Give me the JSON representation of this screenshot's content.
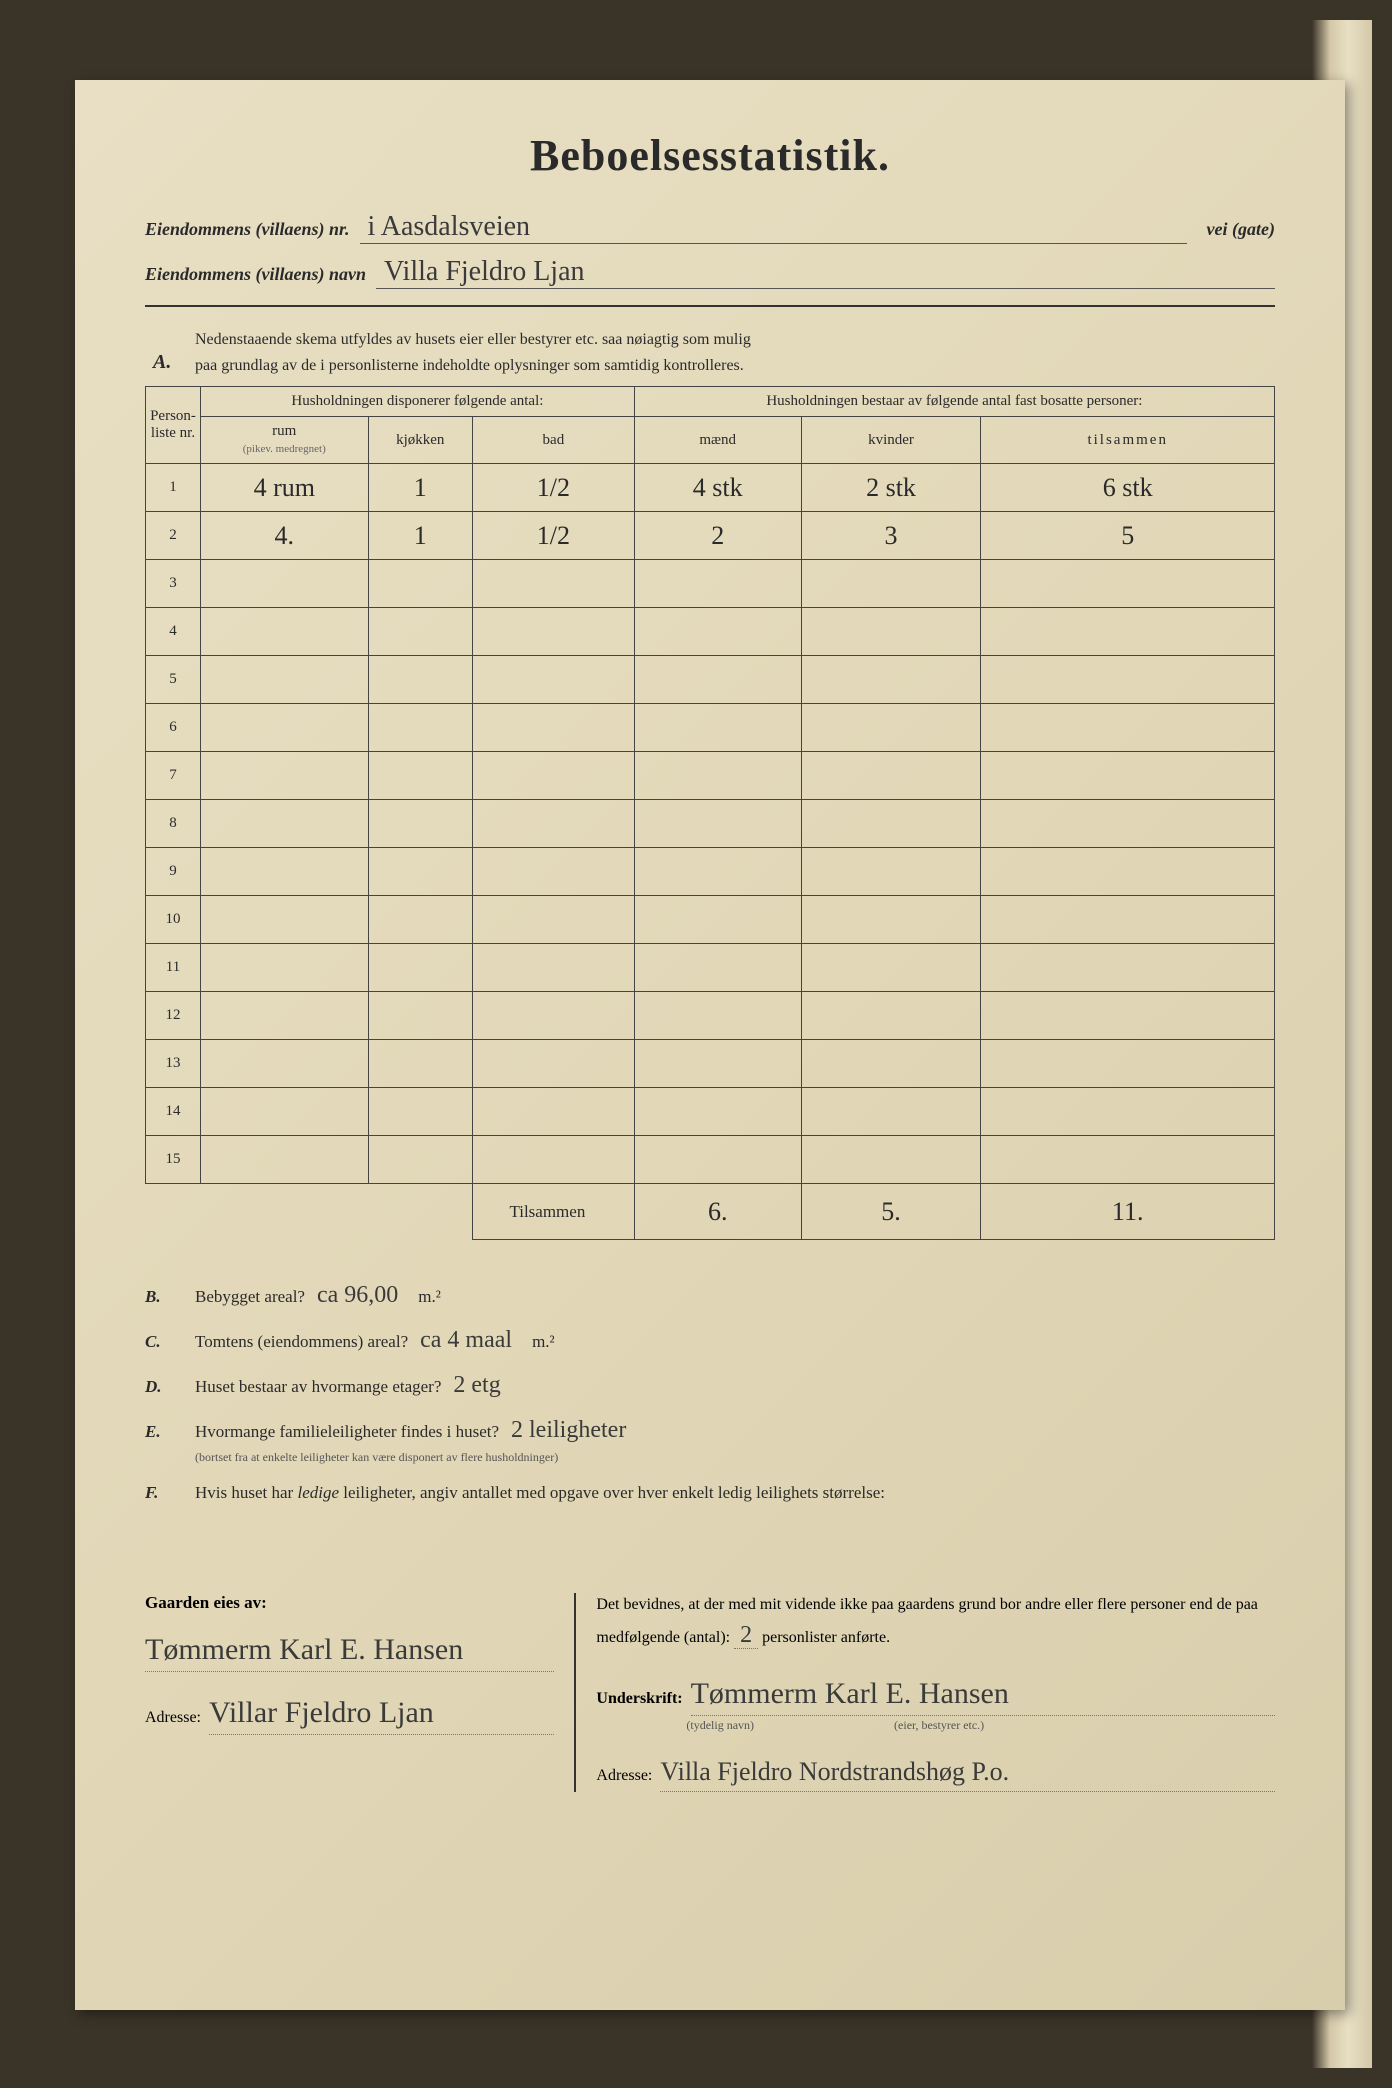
{
  "title": "Beboelsesstatistik.",
  "header": {
    "nr_label": "Eiendommens (villaens) nr.",
    "nr_value": "i Aasdalsveien",
    "vei_gate": "vei (gate)",
    "navn_label": "Eiendommens (villaens) navn",
    "navn_value": "Villa Fjeldro Ljan"
  },
  "section_a": {
    "letter": "A.",
    "text1": "Nedenstaaende skema utfyldes av husets eier eller bestyrer etc. saa nøiagtig som mulig",
    "text2": "paa grundlag av de i personlisterne indeholdte oplysninger som samtidig kontrolleres."
  },
  "table": {
    "col_personliste": "Person-liste nr.",
    "col_disponerer": "Husholdningen disponerer følgende antal:",
    "col_bestaar": "Husholdningen bestaar av følgende antal fast bosatte personer:",
    "col_rum": "rum",
    "col_rum_sub": "(pikev. medregnet)",
    "col_kjokken": "kjøkken",
    "col_bad": "bad",
    "col_maend": "mænd",
    "col_kvinder": "kvinder",
    "col_tilsammen": "tilsammen",
    "rows": [
      {
        "n": "1",
        "rum": "4 rum",
        "kjokken": "1",
        "bad": "1/2",
        "maend": "4 stk",
        "kvinder": "2 stk",
        "tils": "6 stk"
      },
      {
        "n": "2",
        "rum": "4.",
        "kjokken": "1",
        "bad": "1/2",
        "maend": "2",
        "kvinder": "3",
        "tils": "5"
      },
      {
        "n": "3",
        "rum": "",
        "kjokken": "",
        "bad": "",
        "maend": "",
        "kvinder": "",
        "tils": ""
      },
      {
        "n": "4",
        "rum": "",
        "kjokken": "",
        "bad": "",
        "maend": "",
        "kvinder": "",
        "tils": ""
      },
      {
        "n": "5",
        "rum": "",
        "kjokken": "",
        "bad": "",
        "maend": "",
        "kvinder": "",
        "tils": ""
      },
      {
        "n": "6",
        "rum": "",
        "kjokken": "",
        "bad": "",
        "maend": "",
        "kvinder": "",
        "tils": ""
      },
      {
        "n": "7",
        "rum": "",
        "kjokken": "",
        "bad": "",
        "maend": "",
        "kvinder": "",
        "tils": ""
      },
      {
        "n": "8",
        "rum": "",
        "kjokken": "",
        "bad": "",
        "maend": "",
        "kvinder": "",
        "tils": ""
      },
      {
        "n": "9",
        "rum": "",
        "kjokken": "",
        "bad": "",
        "maend": "",
        "kvinder": "",
        "tils": ""
      },
      {
        "n": "10",
        "rum": "",
        "kjokken": "",
        "bad": "",
        "maend": "",
        "kvinder": "",
        "tils": ""
      },
      {
        "n": "11",
        "rum": "",
        "kjokken": "",
        "bad": "",
        "maend": "",
        "kvinder": "",
        "tils": ""
      },
      {
        "n": "12",
        "rum": "",
        "kjokken": "",
        "bad": "",
        "maend": "",
        "kvinder": "",
        "tils": ""
      },
      {
        "n": "13",
        "rum": "",
        "kjokken": "",
        "bad": "",
        "maend": "",
        "kvinder": "",
        "tils": ""
      },
      {
        "n": "14",
        "rum": "",
        "kjokken": "",
        "bad": "",
        "maend": "",
        "kvinder": "",
        "tils": ""
      },
      {
        "n": "15",
        "rum": "",
        "kjokken": "",
        "bad": "",
        "maend": "",
        "kvinder": "",
        "tils": ""
      }
    ],
    "total_label": "Tilsammen",
    "total_maend": "6.",
    "total_kvinder": "5.",
    "total_tils": "11."
  },
  "sections": {
    "B": {
      "letter": "B.",
      "text": "Bebygget areal?",
      "value": "ca 96,00",
      "unit": "m.²"
    },
    "C": {
      "letter": "C.",
      "text": "Tomtens (eiendommens) areal?",
      "value": "ca 4 maal",
      "unit": "m.²"
    },
    "D": {
      "letter": "D.",
      "text": "Huset bestaar av hvormange etager?",
      "value": "2 etg"
    },
    "E": {
      "letter": "E.",
      "text": "Hvormange familieleiligheter findes i huset?",
      "value": "2 leiligheter",
      "note": "(bortset fra at enkelte leiligheter kan være disponert av flere husholdninger)"
    },
    "F": {
      "letter": "F.",
      "text": "Hvis huset har ledige leiligheter, angiv antallet med opgave over hver enkelt ledig leilighets størrelse:"
    }
  },
  "bottom": {
    "left_heading": "Gaarden eies av:",
    "owner_name": "Tømmerm Karl E. Hansen",
    "owner_adresse_label": "Adresse:",
    "owner_adresse": "Villar Fjeldro Ljan",
    "right_text1": "Det bevidnes, at der med mit vidende ikke paa gaardens grund bor andre eller flere personer end de paa medfølgende (antal):",
    "antal_value": "2",
    "right_text2": "personlister anførte.",
    "underskrift_label": "Underskrift:",
    "underskrift_sub": "(tydelig navn)",
    "underskrift_sub2": "(eier, bestyrer etc.)",
    "underskrift_value": "Tømmerm Karl E. Hansen",
    "right_adresse_label": "Adresse:",
    "right_adresse": "Villa Fjeldro Nordstrandshøg P.o."
  },
  "colors": {
    "paper": "#e2d8b8",
    "text": "#2a2a2a",
    "handwriting": "#3a3a3a",
    "border": "#444"
  }
}
